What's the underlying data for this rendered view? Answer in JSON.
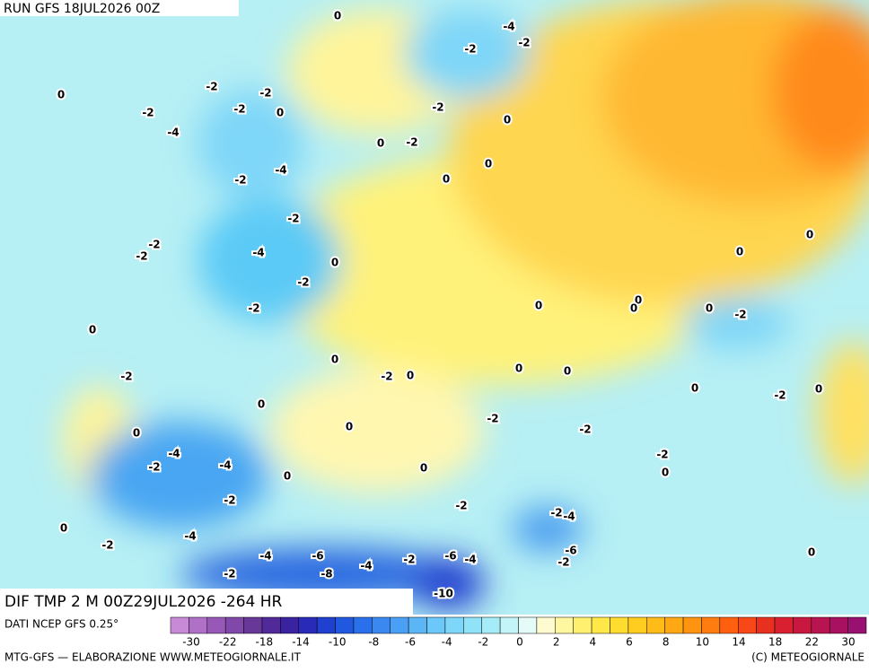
{
  "header": {
    "run": "RUN GFS 18JUL2026 00Z"
  },
  "map": {
    "title": "DIF TMP 2 M 00Z29JUL2026 -264 HR",
    "labels": [
      0,
      -4,
      -2,
      -2,
      0,
      -2,
      -2,
      -2,
      -2,
      0,
      -2,
      0,
      -4,
      0,
      -2,
      -4,
      -2,
      0,
      0,
      -2,
      -2,
      -2,
      -4,
      0,
      0,
      0,
      -2,
      -2,
      0,
      0,
      0,
      0,
      -2,
      0,
      0,
      -2,
      0,
      0,
      0,
      -2,
      0,
      -2,
      0,
      0,
      0,
      -2,
      -2,
      0,
      -4,
      -2,
      -4,
      -2,
      0,
      0,
      0,
      -2,
      -2,
      -2,
      -4,
      0,
      -4,
      -2,
      -4,
      -6,
      -8,
      -4,
      -2,
      -6,
      -4,
      -2,
      -6,
      -2,
      0,
      -10
    ]
  },
  "legend": {
    "source": "DATI NCEP GFS 0.25°",
    "ticks": [
      -30,
      -22,
      -18,
      -14,
      -10,
      -8,
      -6,
      -4,
      -2,
      0,
      2,
      4,
      6,
      8,
      10,
      14,
      18,
      22,
      30
    ],
    "colors": [
      "#c88ad6",
      "#b070c8",
      "#9858b8",
      "#8048a8",
      "#683898",
      "#502a98",
      "#3a22a0",
      "#2a2ab8",
      "#2040d0",
      "#2058e0",
      "#2a70ea",
      "#3a88f0",
      "#4aa0f4",
      "#5cb6f6",
      "#6cc8f8",
      "#7ed6f8",
      "#90e2f8",
      "#a6ecf8",
      "#c2f4f8",
      "#e4fbf8",
      "#fffbd0",
      "#fff6a0",
      "#fff070",
      "#ffe848",
      "#ffdc30",
      "#ffcc20",
      "#ffbc18",
      "#ffa814",
      "#ff9410",
      "#ff7c10",
      "#ff6010",
      "#f84818",
      "#e83020",
      "#d82030",
      "#c81840",
      "#b81450",
      "#a81060",
      "#981070"
    ]
  },
  "footer": {
    "left": "MTG-GFS — ELABORAZIONE WWW.METEOGIORNALE.IT",
    "right": "(C) METEOGIORNALE"
  }
}
